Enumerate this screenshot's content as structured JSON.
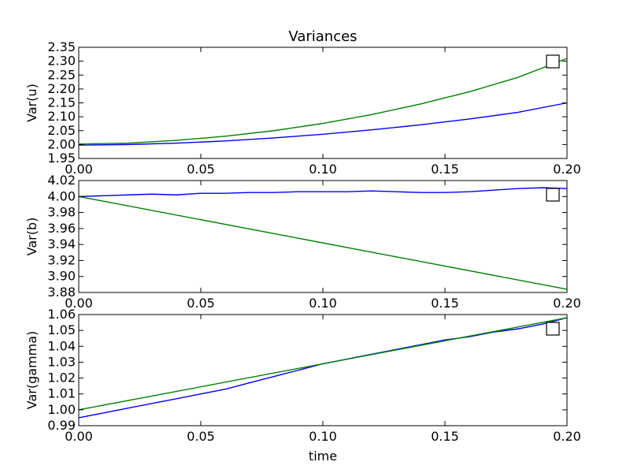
{
  "chart_data": [
    {
      "type": "line",
      "title": "Variances",
      "xlabel": "",
      "ylabel": "Var(u)",
      "xlim": [
        0.0,
        0.2
      ],
      "ylim": [
        1.95,
        2.35
      ],
      "xticks": [
        "0.00",
        "0.05",
        "0.10",
        "0.15",
        "0.20"
      ],
      "yticks": [
        "1.95",
        "2.00",
        "2.05",
        "2.10",
        "2.15",
        "2.20",
        "2.25",
        "2.30",
        "2.35"
      ],
      "legend": "top-right, empty",
      "grid": false,
      "series": [
        {
          "color": "#0000ff",
          "x": [
            0.0,
            0.02,
            0.04,
            0.06,
            0.08,
            0.1,
            0.12,
            0.14,
            0.16,
            0.18,
            0.2
          ],
          "y": [
            1.998,
            2.0,
            2.005,
            2.013,
            2.024,
            2.037,
            2.053,
            2.071,
            2.092,
            2.116,
            2.15
          ]
        },
        {
          "color": "#008000",
          "x": [
            0.0,
            0.02,
            0.04,
            0.06,
            0.08,
            0.1,
            0.12,
            0.14,
            0.16,
            0.18,
            0.2
          ],
          "y": [
            2.002,
            2.005,
            2.015,
            2.03,
            2.05,
            2.076,
            2.108,
            2.146,
            2.19,
            2.242,
            2.31
          ]
        }
      ]
    },
    {
      "type": "line",
      "title": "",
      "xlabel": "",
      "ylabel": "Var(b)",
      "xlim": [
        0.0,
        0.2
      ],
      "ylim": [
        3.88,
        4.02
      ],
      "xticks": [
        "0.00",
        "0.05",
        "0.10",
        "0.15",
        "0.20"
      ],
      "yticks": [
        "3.88",
        "3.90",
        "3.92",
        "3.94",
        "3.96",
        "3.98",
        "4.00",
        "4.02"
      ],
      "legend": "top-right, empty",
      "grid": false,
      "series": [
        {
          "color": "#0000ff",
          "x": [
            0.0,
            0.01,
            0.02,
            0.03,
            0.04,
            0.05,
            0.06,
            0.07,
            0.08,
            0.09,
            0.1,
            0.11,
            0.12,
            0.13,
            0.14,
            0.15,
            0.16,
            0.17,
            0.18,
            0.19,
            0.2
          ],
          "y": [
            4.0,
            4.001,
            4.002,
            4.003,
            4.002,
            4.004,
            4.004,
            4.005,
            4.005,
            4.006,
            4.006,
            4.006,
            4.007,
            4.006,
            4.005,
            4.005,
            4.006,
            4.008,
            4.01,
            4.011,
            4.01
          ]
        },
        {
          "color": "#008000",
          "x": [
            0.0,
            0.2
          ],
          "y": [
            4.0,
            3.884
          ]
        }
      ]
    },
    {
      "type": "line",
      "title": "",
      "xlabel": "time",
      "ylabel": "Var(gamma)",
      "xlim": [
        0.0,
        0.2
      ],
      "ylim": [
        0.99,
        1.06
      ],
      "xticks": [
        "0.00",
        "0.05",
        "0.10",
        "0.15",
        "0.20"
      ],
      "yticks": [
        "0.99",
        "1.00",
        "1.01",
        "1.02",
        "1.03",
        "1.04",
        "1.05",
        "1.06"
      ],
      "legend": "top-right, empty",
      "grid": false,
      "series": [
        {
          "color": "#0000ff",
          "x": [
            0.0,
            0.01,
            0.02,
            0.03,
            0.04,
            0.05,
            0.06,
            0.07,
            0.08,
            0.09,
            0.1,
            0.11,
            0.12,
            0.13,
            0.14,
            0.15,
            0.16,
            0.17,
            0.18,
            0.19,
            0.2
          ],
          "y": [
            0.995,
            0.998,
            1.001,
            1.004,
            1.007,
            1.01,
            1.013,
            1.017,
            1.021,
            1.025,
            1.029,
            1.032,
            1.035,
            1.038,
            1.041,
            1.044,
            1.046,
            1.049,
            1.051,
            1.054,
            1.058
          ]
        },
        {
          "color": "#008000",
          "x": [
            0.0,
            0.2
          ],
          "y": [
            1.0,
            1.058
          ]
        }
      ]
    }
  ]
}
